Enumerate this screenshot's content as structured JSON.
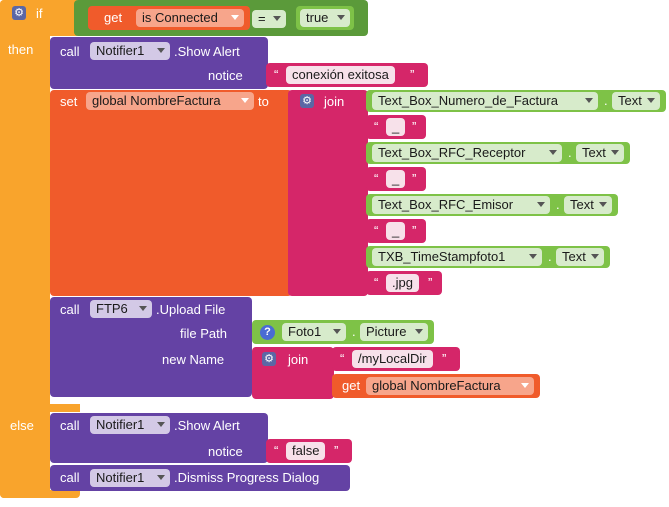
{
  "colors": {
    "control": "#f9a42c",
    "procedure": "#6442a4",
    "variable": "#f05b2b",
    "text": "#d52669",
    "logic": "#5b9a3a",
    "component_get": "#7ec247",
    "dropdown_bg": "#e8e8e8"
  },
  "if_block": {
    "if_label": "if",
    "then_label": "then",
    "else_label": "else"
  },
  "condition": {
    "get_label": "get",
    "variable": "is Connected",
    "operator": "=",
    "value": "true"
  },
  "then": {
    "alert1": {
      "call_label": "call",
      "component": "Notifier1",
      "method": ".Show Alert",
      "param_label": "notice",
      "message": "conexión exitosa"
    },
    "set_block": {
      "set_label": "set",
      "variable": "global NombreFactura",
      "to_label": "to",
      "join_label": "join",
      "items": [
        {
          "type": "component",
          "component": "Text_Box_Numero_de_Factura",
          "property": "Text"
        },
        {
          "type": "text",
          "value": "_"
        },
        {
          "type": "component",
          "component": "Text_Box_RFC_Receptor",
          "property": "Text"
        },
        {
          "type": "text",
          "value": "_"
        },
        {
          "type": "component",
          "component": "Text_Box_RFC_Emisor",
          "property": "Text"
        },
        {
          "type": "text",
          "value": "_"
        },
        {
          "type": "component",
          "component": "TXB_TimeStampfoto1",
          "property": "Text"
        },
        {
          "type": "text",
          "value": ".jpg"
        }
      ]
    },
    "upload": {
      "call_label": "call",
      "component": "FTP6",
      "method": ".Upload File",
      "file_path_label": "file Path",
      "file_component": "Foto1",
      "file_property": "Picture",
      "new_name_label": "new Name",
      "join_label": "join",
      "dir_text": "/myLocalDir",
      "get_label": "get",
      "get_variable": "global NombreFactura"
    }
  },
  "else": {
    "alert2": {
      "call_label": "call",
      "component": "Notifier1",
      "method": ".Show Alert",
      "param_label": "notice",
      "message": "false"
    },
    "dismiss": {
      "call_label": "call",
      "component": "Notifier1",
      "method": ".Dismiss Progress Dialog"
    }
  },
  "icons": {
    "mutator": "gear-icon",
    "help": "question-icon",
    "dropdown": "chevron-down-icon"
  }
}
